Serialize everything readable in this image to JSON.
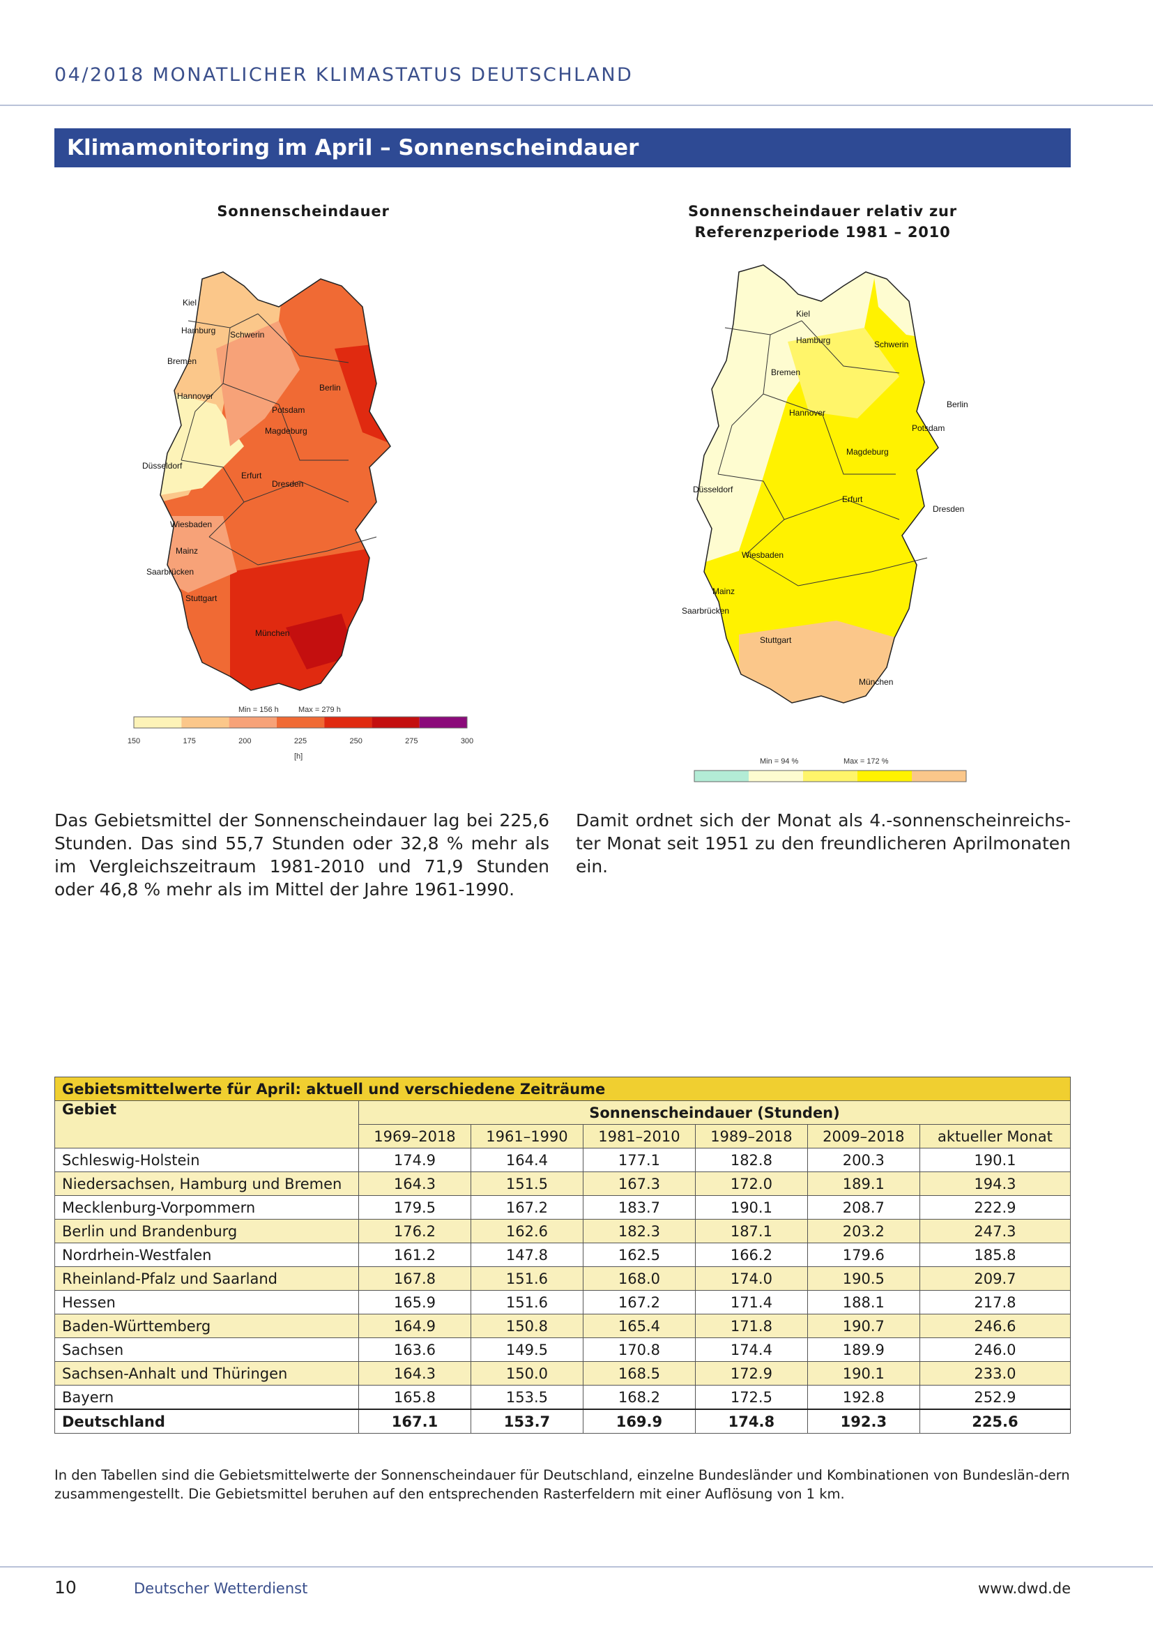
{
  "header": {
    "title": "04/2018  MONATLICHER KLIMASTATUS DEUTSCHLAND"
  },
  "section": {
    "title": "Klimamonitoring im April – Sonnenscheindauer"
  },
  "map_left": {
    "title": "Sonnenscheindauer",
    "min_label": "Min = 156 h",
    "max_label": "Max = 279 h",
    "unit": "[h]",
    "legend_ticks": [
      "150",
      "175",
      "200",
      "225",
      "250",
      "275",
      "300"
    ],
    "legend_colors": [
      "#fdf3b8",
      "#fbc78a",
      "#f7a278",
      "#f06a34",
      "#e02a10",
      "#c40f0f",
      "#8b0a7a"
    ],
    "cities": [
      "Kiel",
      "Hamburg",
      "Schwerin",
      "Bremen",
      "Berlin",
      "Hannover",
      "Potsdam",
      "Magdeburg",
      "Düsseldorf",
      "Erfurt",
      "Dresden",
      "Wiesbaden",
      "Mainz",
      "Saarbrücken",
      "Stuttgart",
      "München"
    ]
  },
  "map_right": {
    "title_line1": "Sonnenscheindauer relativ zur",
    "title_line2": "Referenzperiode 1981 – 2010",
    "min_label": "Min = 94 %",
    "max_label": "Max = 172 %",
    "legend_colors": [
      "#b3ecd6",
      "#fefcd0",
      "#fff56a",
      "#fff200",
      "#fbc78a"
    ],
    "cities": [
      "Kiel",
      "Hamburg",
      "Schwerin",
      "Bremen",
      "Berlin",
      "Hannover",
      "Potsdam",
      "Magdeburg",
      "Düsseldorf",
      "Erfurt",
      "Dresden",
      "Wiesbaden",
      "Mainz",
      "Saarbrücken",
      "Stuttgart",
      "München"
    ]
  },
  "text": {
    "left": "Das Gebietsmittel der Sonnenscheindauer lag bei 225,6 Stunden. Das sind 55,7 Stunden oder 32,8 % mehr als im Vergleichszeitraum 1981-2010 und 71,9 Stunden oder 46,8 % mehr als im Mittel der Jahre 1961-1990.",
    "right": "Damit ordnet sich der Monat als 4.-sonnenscheinreichs-ter Monat seit 1951 zu den freundlicheren Aprilmonaten ein."
  },
  "table": {
    "caption": "Gebietsmittelwerte für April: aktuell und verschiedene Zeiträume",
    "region_header": "Gebiet",
    "group_header": "Sonnenscheindauer (Stunden)",
    "periods": [
      "1969–2018",
      "1961–1990",
      "1981–2010",
      "1989–2018",
      "2009–2018",
      "aktueller Monat"
    ],
    "rows": [
      {
        "region": "Schleswig-Holstein",
        "values": [
          "174.9",
          "164.4",
          "177.1",
          "182.8",
          "200.3",
          "190.1"
        ]
      },
      {
        "region": "Niedersachsen, Hamburg und Bremen",
        "values": [
          "164.3",
          "151.5",
          "167.3",
          "172.0",
          "189.1",
          "194.3"
        ]
      },
      {
        "region": "Mecklenburg-Vorpommern",
        "values": [
          "179.5",
          "167.2",
          "183.7",
          "190.1",
          "208.7",
          "222.9"
        ]
      },
      {
        "region": "Berlin und Brandenburg",
        "values": [
          "176.2",
          "162.6",
          "182.3",
          "187.1",
          "203.2",
          "247.3"
        ]
      },
      {
        "region": "Nordrhein-Westfalen",
        "values": [
          "161.2",
          "147.8",
          "162.5",
          "166.2",
          "179.6",
          "185.8"
        ]
      },
      {
        "region": "Rheinland-Pfalz und Saarland",
        "values": [
          "167.8",
          "151.6",
          "168.0",
          "174.0",
          "190.5",
          "209.7"
        ]
      },
      {
        "region": "Hessen",
        "values": [
          "165.9",
          "151.6",
          "167.2",
          "171.4",
          "188.1",
          "217.8"
        ]
      },
      {
        "region": "Baden-Württemberg",
        "values": [
          "164.9",
          "150.8",
          "165.4",
          "171.8",
          "190.7",
          "246.6"
        ]
      },
      {
        "region": "Sachsen",
        "values": [
          "163.6",
          "149.5",
          "170.8",
          "174.4",
          "189.9",
          "246.0"
        ]
      },
      {
        "region": "Sachsen-Anhalt und Thüringen",
        "values": [
          "164.3",
          "150.0",
          "168.5",
          "172.9",
          "190.1",
          "233.0"
        ]
      },
      {
        "region": "Bayern",
        "values": [
          "165.8",
          "153.5",
          "168.2",
          "172.5",
          "192.8",
          "252.9"
        ]
      },
      {
        "region": "Deutschland",
        "values": [
          "167.1",
          "153.7",
          "169.9",
          "174.8",
          "192.3",
          "225.6"
        ]
      }
    ]
  },
  "footnote": "In den Tabellen sind die Gebietsmittelwerte der Sonnenscheindauer für Deutschland, einzelne Bundesländer und Kombinationen von Bundeslän-dern zusammengestellt. Die Gebietsmittel beruhen auf den entsprechenden Rasterfeldern mit einer Auflösung von 1 km.",
  "footer": {
    "page": "10",
    "org": "Deutscher Wetterdienst",
    "url": "www.dwd.de"
  }
}
